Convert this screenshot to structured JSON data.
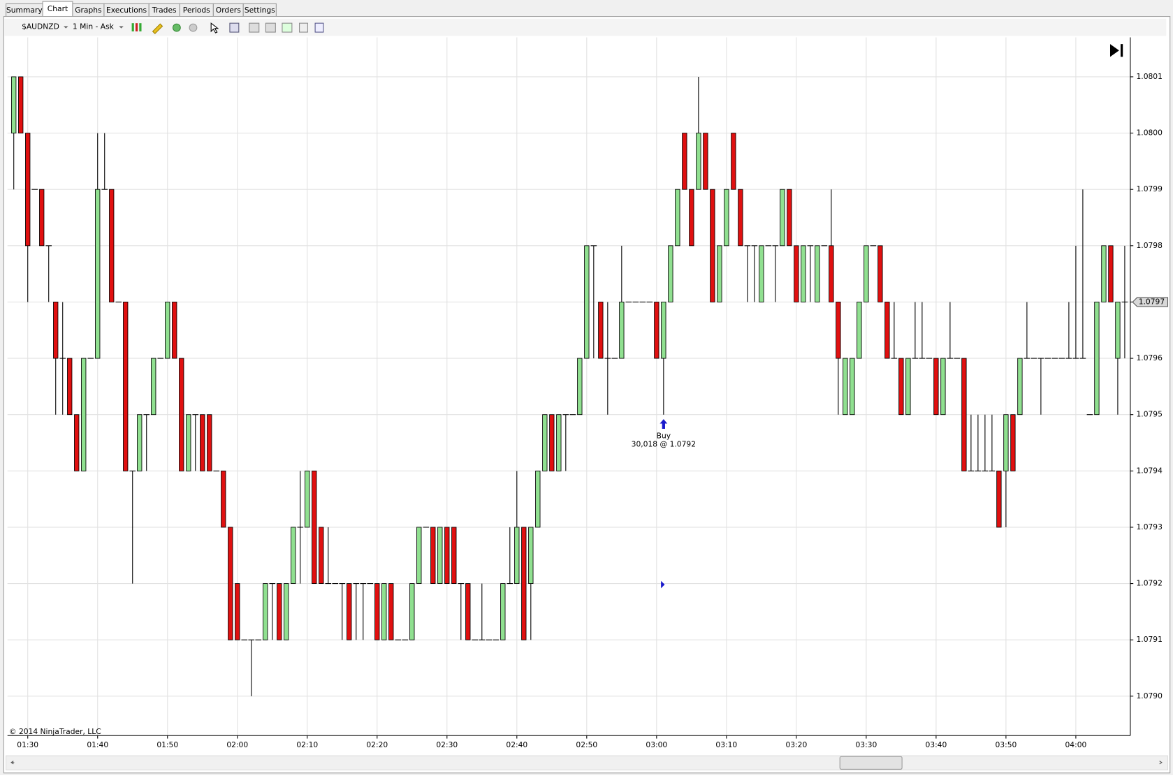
{
  "tabs": [
    "Summary",
    "Chart",
    "Graphs",
    "Executions",
    "Trades",
    "Periods",
    "Orders",
    "Settings"
  ],
  "toolbar": {
    "symbol": "$AUDNZD",
    "period": "1 Min - Ask"
  },
  "copyright": "© 2014 NinjaTrader, LLC",
  "chart_data": {
    "type": "candlestick",
    "up_color": "#90e090",
    "down_color": "#e01010",
    "x": [
      88,
      89,
      90,
      91,
      92,
      93,
      94,
      95,
      96,
      97,
      98,
      99,
      100,
      101,
      102,
      103,
      104,
      105,
      106,
      107,
      108,
      109,
      110,
      111,
      112,
      113,
      114,
      115,
      116,
      117,
      118,
      119,
      120,
      121,
      122,
      123,
      124,
      125,
      126,
      127,
      128,
      129,
      130,
      131,
      132,
      133,
      134,
      135,
      136,
      137,
      138,
      139,
      140,
      141,
      142,
      143,
      144,
      145,
      146,
      147,
      148,
      149,
      150,
      151,
      152,
      153,
      154,
      155,
      156,
      157,
      158,
      159,
      160,
      161,
      162,
      163,
      164,
      165,
      166,
      167,
      168,
      169,
      170,
      171,
      172,
      173,
      174,
      175,
      176,
      177,
      178,
      179,
      180,
      181,
      182,
      183,
      184,
      185,
      186,
      187,
      188,
      189,
      190,
      191,
      192,
      193,
      194,
      195,
      196,
      197,
      198,
      199,
      200,
      201,
      202,
      203,
      204,
      205,
      206,
      207,
      208,
      209,
      210,
      211,
      212,
      213,
      214,
      215,
      216,
      217,
      218,
      219,
      220,
      221,
      222,
      223,
      224,
      225,
      226,
      227,
      228,
      229,
      230,
      231,
      232,
      233,
      234,
      235,
      236,
      237,
      238,
      239,
      240,
      241,
      242,
      243,
      244,
      245,
      246,
      247
    ],
    "open": [
      1.08,
      1.0801,
      1.08,
      1.0799,
      1.0799,
      1.0798,
      1.0797,
      1.0796,
      1.0796,
      1.0795,
      1.0794,
      1.0796,
      1.0796,
      1.0799,
      1.0799,
      1.0797,
      1.0797,
      1.0794,
      1.0794,
      1.0795,
      1.0795,
      1.0796,
      1.0796,
      1.0797,
      1.0796,
      1.0794,
      1.0795,
      1.0795,
      1.0795,
      1.0794,
      1.0794,
      1.0793,
      1.0792,
      1.0791,
      1.0791,
      1.0791,
      1.0791,
      1.0792,
      1.0792,
      1.0791,
      1.0792,
      1.0793,
      1.0793,
      1.0794,
      1.0793,
      1.0792,
      1.0792,
      1.0792,
      1.0792,
      1.0792,
      1.0792,
      1.0792,
      1.0792,
      1.0791,
      1.0792,
      1.0791,
      1.0791,
      1.0791,
      1.0792,
      1.0793,
      1.0793,
      1.0792,
      1.0793,
      1.0793,
      1.0792,
      1.0792,
      1.0791,
      1.0791,
      1.0791,
      1.0791,
      1.0791,
      1.0792,
      1.0792,
      1.0793,
      1.0792,
      1.0793,
      1.0794,
      1.0795,
      1.0794,
      1.0795,
      1.0795,
      1.0795,
      1.0796,
      1.0798,
      1.0797,
      1.0796,
      1.0796,
      1.0796,
      1.0797,
      1.0797,
      1.0797,
      1.0797,
      1.0797,
      1.0796,
      1.0797,
      1.0798,
      1.08,
      1.0799,
      1.0799,
      1.08,
      1.0799,
      1.0797,
      1.0798,
      1.08,
      1.0799,
      1.0798,
      1.0798,
      1.0797,
      1.0798,
      1.0798,
      1.0798,
      1.0799,
      1.0798,
      1.0797,
      1.0798,
      1.0797,
      1.0798,
      1.0798,
      1.0797,
      1.0795,
      1.0795,
      1.0796,
      1.0797,
      1.0798,
      1.0798,
      1.0797,
      1.0796,
      1.0796,
      1.0795,
      1.0796,
      1.0796,
      1.0796,
      1.0796,
      1.0795,
      1.0796,
      1.0796,
      1.0796,
      1.0794,
      1.0794,
      1.0794,
      1.0794,
      1.0794,
      1.0794,
      1.0795,
      1.0795,
      1.0796,
      1.0796,
      1.0796,
      1.0796,
      1.0796,
      1.0796,
      1.0796,
      1.0796,
      1.0796,
      1.0795,
      1.0795,
      1.0797,
      1.0798,
      1.0796,
      1.0797
    ],
    "high": [
      1.0801,
      1.0801,
      1.08,
      1.0799,
      1.0799,
      1.0798,
      1.0797,
      1.0797,
      1.0796,
      1.0795,
      1.0796,
      1.0796,
      1.08,
      1.08,
      1.0799,
      1.0797,
      1.0797,
      1.0794,
      1.0795,
      1.0795,
      1.0796,
      1.0796,
      1.0797,
      1.0797,
      1.0796,
      1.0795,
      1.0795,
      1.0795,
      1.0795,
      1.0794,
      1.0794,
      1.0793,
      1.0792,
      1.0791,
      1.0791,
      1.0791,
      1.0792,
      1.0792,
      1.0792,
      1.0792,
      1.0793,
      1.0794,
      1.0794,
      1.0794,
      1.0793,
      1.0793,
      1.0792,
      1.0792,
      1.0792,
      1.0792,
      1.0792,
      1.0792,
      1.0792,
      1.0792,
      1.0792,
      1.0791,
      1.0791,
      1.0792,
      1.0793,
      1.0793,
      1.0793,
      1.0793,
      1.0793,
      1.0793,
      1.0792,
      1.0792,
      1.0791,
      1.0792,
      1.0791,
      1.0791,
      1.0792,
      1.0793,
      1.0794,
      1.0793,
      1.0793,
      1.0794,
      1.0795,
      1.0795,
      1.0795,
      1.0795,
      1.0795,
      1.0796,
      1.0798,
      1.0798,
      1.0797,
      1.0797,
      1.0796,
      1.0798,
      1.0797,
      1.0797,
      1.0797,
      1.0797,
      1.0797,
      1.0797,
      1.0798,
      1.0799,
      1.08,
      1.0799,
      1.0801,
      1.08,
      1.0799,
      1.0798,
      1.0799,
      1.08,
      1.0799,
      1.0798,
      1.0798,
      1.0798,
      1.0798,
      1.0798,
      1.0799,
      1.0799,
      1.0798,
      1.0798,
      1.0798,
      1.0798,
      1.0798,
      1.0799,
      1.0797,
      1.0796,
      1.0796,
      1.0797,
      1.0798,
      1.0798,
      1.0798,
      1.0797,
      1.0797,
      1.0796,
      1.0796,
      1.0797,
      1.0797,
      1.0796,
      1.0796,
      1.0796,
      1.0797,
      1.0796,
      1.0796,
      1.0795,
      1.0795,
      1.0795,
      1.0795,
      1.0794,
      1.0795,
      1.0795,
      1.0796,
      1.0797,
      1.0796,
      1.0796,
      1.0796,
      1.0796,
      1.0796,
      1.0797,
      1.0798,
      1.0799,
      1.0795,
      1.0797,
      1.0798,
      1.0798,
      1.0797,
      1.0798
    ],
    "low": [
      1.0799,
      1.08,
      1.0797,
      1.0799,
      1.0798,
      1.0797,
      1.0795,
      1.0795,
      1.0795,
      1.0794,
      1.0794,
      1.0796,
      1.0796,
      1.0799,
      1.0797,
      1.0797,
      1.0794,
      1.0792,
      1.0794,
      1.0794,
      1.0795,
      1.0796,
      1.0796,
      1.0796,
      1.0794,
      1.0794,
      1.0794,
      1.0794,
      1.0794,
      1.0794,
      1.0793,
      1.0791,
      1.0791,
      1.0791,
      1.079,
      1.0791,
      1.0791,
      1.0791,
      1.0791,
      1.0791,
      1.0792,
      1.0792,
      1.0793,
      1.0792,
      1.0792,
      1.0792,
      1.0792,
      1.0791,
      1.0791,
      1.0791,
      1.0791,
      1.0792,
      1.0791,
      1.0791,
      1.0791,
      1.0791,
      1.0791,
      1.0791,
      1.0792,
      1.0793,
      1.0792,
      1.0792,
      1.0792,
      1.0792,
      1.0791,
      1.0791,
      1.0791,
      1.0791,
      1.0791,
      1.0791,
      1.0791,
      1.0792,
      1.0792,
      1.0791,
      1.0791,
      1.0793,
      1.0794,
      1.0794,
      1.0794,
      1.0794,
      1.0795,
      1.0795,
      1.0796,
      1.0796,
      1.0796,
      1.0795,
      1.0796,
      1.0796,
      1.0797,
      1.0797,
      1.0797,
      1.0797,
      1.0796,
      1.0795,
      1.0797,
      1.0798,
      1.0799,
      1.0798,
      1.0799,
      1.0799,
      1.0797,
      1.0797,
      1.0798,
      1.0799,
      1.0798,
      1.0797,
      1.0797,
      1.0797,
      1.0798,
      1.0797,
      1.0798,
      1.0798,
      1.0797,
      1.0797,
      1.0797,
      1.0797,
      1.0798,
      1.0797,
      1.0795,
      1.0795,
      1.0795,
      1.0796,
      1.0797,
      1.0798,
      1.0797,
      1.0796,
      1.0796,
      1.0795,
      1.0795,
      1.0796,
      1.0796,
      1.0796,
      1.0795,
      1.0795,
      1.0796,
      1.0796,
      1.0794,
      1.0794,
      1.0794,
      1.0794,
      1.0794,
      1.0793,
      1.0793,
      1.0794,
      1.0795,
      1.0796,
      1.0796,
      1.0795,
      1.0796,
      1.0796,
      1.0796,
      1.0796,
      1.0796,
      1.0796,
      1.0795,
      1.0795,
      1.0797,
      1.0797,
      1.0795,
      1.0796
    ],
    "close": [
      1.0801,
      1.08,
      1.0798,
      1.0799,
      1.0798,
      1.0798,
      1.0796,
      1.0796,
      1.0795,
      1.0794,
      1.0796,
      1.0796,
      1.0799,
      1.0799,
      1.0797,
      1.0797,
      1.0794,
      1.0794,
      1.0795,
      1.0795,
      1.0796,
      1.0796,
      1.0797,
      1.0796,
      1.0794,
      1.0795,
      1.0795,
      1.0794,
      1.0794,
      1.0794,
      1.0793,
      1.0791,
      1.0791,
      1.0791,
      1.0791,
      1.0791,
      1.0792,
      1.0792,
      1.0791,
      1.0792,
      1.0793,
      1.0793,
      1.0794,
      1.0792,
      1.0792,
      1.0792,
      1.0792,
      1.0792,
      1.0791,
      1.0792,
      1.0792,
      1.0792,
      1.0791,
      1.0792,
      1.0791,
      1.0791,
      1.0791,
      1.0792,
      1.0793,
      1.0793,
      1.0792,
      1.0793,
      1.0792,
      1.0792,
      1.0792,
      1.0791,
      1.0791,
      1.0791,
      1.0791,
      1.0791,
      1.0792,
      1.0792,
      1.0793,
      1.0791,
      1.0793,
      1.0794,
      1.0795,
      1.0794,
      1.0795,
      1.0795,
      1.0795,
      1.0796,
      1.0798,
      1.0798,
      1.0796,
      1.0796,
      1.0796,
      1.0797,
      1.0797,
      1.0797,
      1.0797,
      1.0797,
      1.0796,
      1.0797,
      1.0798,
      1.0799,
      1.0799,
      1.0798,
      1.08,
      1.0799,
      1.0797,
      1.0798,
      1.0799,
      1.0799,
      1.0798,
      1.0798,
      1.0798,
      1.0798,
      1.0798,
      1.0798,
      1.0799,
      1.0798,
      1.0797,
      1.0798,
      1.0798,
      1.0798,
      1.0798,
      1.0797,
      1.0796,
      1.0796,
      1.0796,
      1.0797,
      1.0798,
      1.0798,
      1.0797,
      1.0796,
      1.0796,
      1.0795,
      1.0796,
      1.0796,
      1.0796,
      1.0796,
      1.0795,
      1.0796,
      1.0796,
      1.0796,
      1.0794,
      1.0794,
      1.0794,
      1.0794,
      1.0794,
      1.0793,
      1.0795,
      1.0794,
      1.0796,
      1.0796,
      1.0796,
      1.0796,
      1.0796,
      1.0796,
      1.0796,
      1.0796,
      1.0796,
      1.0796,
      1.0795,
      1.0797,
      1.0798,
      1.0797,
      1.0797,
      1.0797
    ],
    "xlim": [
      87.1,
      247.8
    ],
    "ylim": [
      1.07893,
      1.08017
    ],
    "xticks": [
      {
        "value": 90,
        "label": "01:30"
      },
      {
        "value": 100,
        "label": "01:40"
      },
      {
        "value": 110,
        "label": "01:50"
      },
      {
        "value": 120,
        "label": "02:00"
      },
      {
        "value": 130,
        "label": "02:10"
      },
      {
        "value": 140,
        "label": "02:20"
      },
      {
        "value": 150,
        "label": "02:30"
      },
      {
        "value": 160,
        "label": "02:40"
      },
      {
        "value": 170,
        "label": "02:50"
      },
      {
        "value": 180,
        "label": "03:00"
      },
      {
        "value": 190,
        "label": "03:10"
      },
      {
        "value": 200,
        "label": "03:20"
      },
      {
        "value": 210,
        "label": "03:30"
      },
      {
        "value": 220,
        "label": "03:40"
      },
      {
        "value": 230,
        "label": "03:50"
      },
      {
        "value": 240,
        "label": "04:00"
      }
    ],
    "yticks": [
      {
        "value": 1.079,
        "label": "1.0790"
      },
      1.0791,
      1.0792,
      1.0793,
      1.0794,
      1.0795,
      1.0796,
      1.0797,
      1.0798,
      1.0799,
      {
        "value": 1.08,
        "label": "1.0800"
      },
      1.0801
    ],
    "grid": true,
    "last_price": 1.0797,
    "annotation": {
      "label": "Buy",
      "text": "30,018 @ 1.0792"
    }
  }
}
